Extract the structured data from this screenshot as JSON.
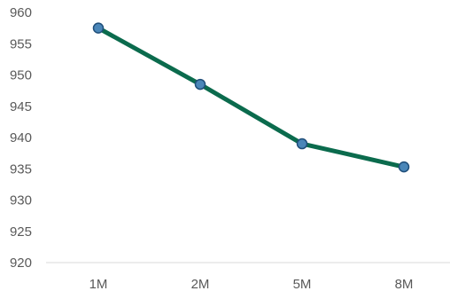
{
  "chart_data": {
    "type": "line",
    "categories": [
      "1M",
      "2M",
      "5M",
      "8M"
    ],
    "series": [
      {
        "values": [
          957.5,
          948.5,
          939.0,
          935.3
        ],
        "line_color": "#0b6b4d",
        "marker_fill": "#4a86b8",
        "marker_stroke": "#1f4e79"
      }
    ],
    "title": "",
    "xlabel": "",
    "ylabel": "",
    "ylim": [
      920,
      960
    ],
    "yticks": [
      "920",
      "925",
      "930",
      "935",
      "940",
      "945",
      "950",
      "955",
      "960"
    ],
    "grid": false,
    "legend": "none",
    "axis_line_color": "#d9d9d9",
    "tick_label_color": "#595959"
  }
}
